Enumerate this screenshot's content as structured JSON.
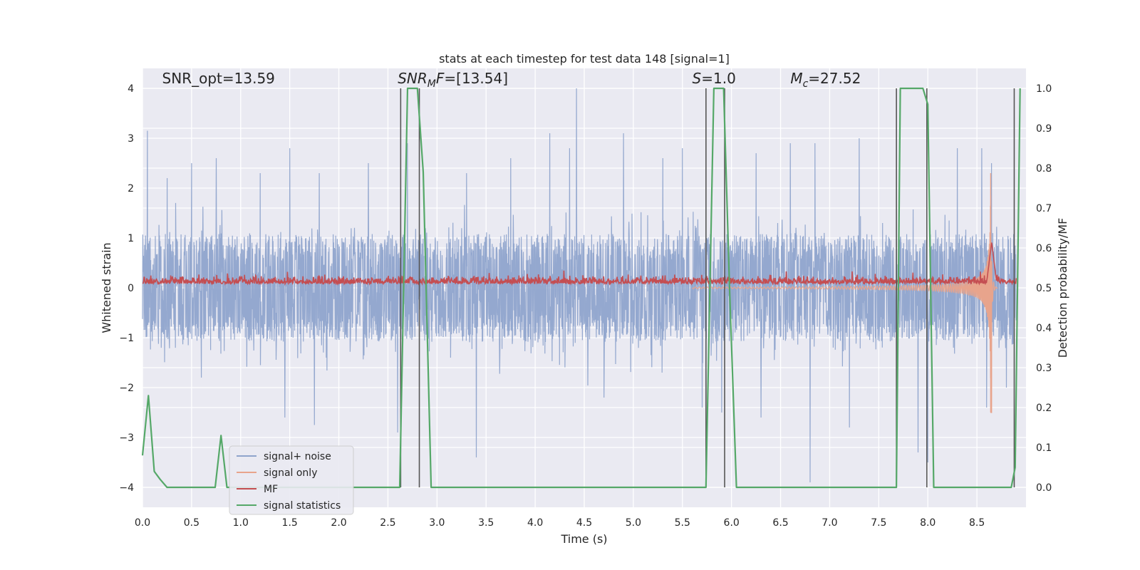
{
  "chart_data": {
    "type": "line",
    "title": "stats at each timestep for test data 148 [signal=1]",
    "xlabel": "Time (s)",
    "ylabel": "Whitened strain",
    "ylabel_right": "Detection probability/MF",
    "xlim": [
      0,
      9
    ],
    "ylim": [
      -4.4,
      4.4
    ],
    "ylim_right": [
      -0.05,
      1.05
    ],
    "x_ticks": [
      0.0,
      0.5,
      1.0,
      1.5,
      2.0,
      2.5,
      3.0,
      3.5,
      4.0,
      4.5,
      5.0,
      5.5,
      6.0,
      6.5,
      7.0,
      7.5,
      8.0,
      8.5
    ],
    "x_tick_labels": [
      "0.0",
      "0.5",
      "1.0",
      "1.5",
      "2.0",
      "2.5",
      "3.0",
      "3.5",
      "4.0",
      "4.5",
      "5.0",
      "5.5",
      "6.0",
      "6.5",
      "7.0",
      "7.5",
      "8.0",
      "8.5"
    ],
    "y_ticks": [
      -4,
      -3,
      -2,
      -1,
      0,
      1,
      2,
      3,
      4
    ],
    "y_tick_labels": [
      "−4",
      "−3",
      "−2",
      "−1",
      "0",
      "1",
      "2",
      "3",
      "4"
    ],
    "y_right_ticks": [
      0.0,
      0.1,
      0.2,
      0.3,
      0.4,
      0.5,
      0.6,
      0.7,
      0.8,
      0.9,
      1.0
    ],
    "y_right_tick_labels": [
      "0.0",
      "0.1",
      "0.2",
      "0.3",
      "0.4",
      "0.5",
      "0.6",
      "0.7",
      "0.8",
      "0.9",
      "1.0"
    ],
    "grid": true,
    "annotations": [
      {
        "parts": [
          {
            "t": "SNR_opt=13.59",
            "i": false
          }
        ],
        "x": 0.2,
        "y": 4.1
      },
      {
        "parts": [
          {
            "t": "SNR",
            "i": true
          },
          {
            "t": "M",
            "i": true,
            "sub": true
          },
          {
            "t": "F",
            "i": true
          },
          {
            "t": "=[13.54]",
            "i": false
          }
        ],
        "x": 2.6,
        "y": 4.1
      },
      {
        "parts": [
          {
            "t": "S",
            "i": true
          },
          {
            "t": "=1.0",
            "i": false
          }
        ],
        "x": 5.6,
        "y": 4.1
      },
      {
        "parts": [
          {
            "t": "M",
            "i": true
          },
          {
            "t": "c",
            "i": true,
            "sub": true
          },
          {
            "t": "=27.52",
            "i": false
          }
        ],
        "x": 6.6,
        "y": 4.1
      }
    ],
    "legend": {
      "placement": "lower-left",
      "entries": [
        {
          "label": "signal+ noise",
          "color": "#8fa4cc"
        },
        {
          "label": "signal only",
          "color": "#e8a48c"
        },
        {
          "label": "MF",
          "color": "#c44e52"
        },
        {
          "label": "signal statistics",
          "color": "#55a868"
        }
      ]
    },
    "series": [
      {
        "name": "signal+ noise",
        "color": "#8fa4cc",
        "kind": "noise",
        "duration": 8.9,
        "band": 0.9,
        "peaks_high": [
          [
            0.05,
            3.15
          ],
          [
            0.25,
            2.2
          ],
          [
            0.5,
            2.5
          ],
          [
            0.75,
            2.6
          ],
          [
            1.2,
            2.3
          ],
          [
            1.5,
            2.8
          ],
          [
            1.8,
            2.3
          ],
          [
            2.3,
            2.5
          ],
          [
            2.7,
            2.9
          ],
          [
            3.3,
            2.3
          ],
          [
            3.75,
            2.6
          ],
          [
            4.15,
            3.1
          ],
          [
            4.35,
            2.8
          ],
          [
            4.42,
            4.0
          ],
          [
            4.9,
            3.1
          ],
          [
            5.3,
            2.6
          ],
          [
            5.5,
            2.8
          ],
          [
            5.7,
            3.0
          ],
          [
            6.25,
            2.7
          ],
          [
            6.6,
            2.9
          ],
          [
            6.85,
            2.9
          ],
          [
            7.3,
            3.0
          ],
          [
            8.0,
            3.0
          ],
          [
            8.3,
            2.8
          ],
          [
            8.55,
            2.8
          ],
          [
            8.65,
            2.5
          ],
          [
            8.95,
            2.1
          ]
        ],
        "peaks_low": [
          [
            0.6,
            -1.8
          ],
          [
            1.45,
            -2.6
          ],
          [
            1.75,
            -2.75
          ],
          [
            2.6,
            -2.9
          ],
          [
            3.4,
            -3.4
          ],
          [
            4.7,
            -2.2
          ],
          [
            5.7,
            -2.4
          ],
          [
            5.9,
            -2.5
          ],
          [
            6.3,
            -2.6
          ],
          [
            6.8,
            -3.9
          ],
          [
            7.2,
            -2.8
          ],
          [
            7.9,
            -3.3
          ],
          [
            8.0,
            -3.5
          ],
          [
            8.6,
            -2.4
          ],
          [
            8.8,
            -2.0
          ]
        ]
      },
      {
        "name": "signal only",
        "color": "#e8a48c",
        "kind": "chirp",
        "start": 5.6,
        "merger": 8.65,
        "peak": 2.3,
        "trough": -2.5
      },
      {
        "name": "MF",
        "color": "#c44e52",
        "kind": "mf",
        "duration": 8.9,
        "peak_x": 8.65,
        "peak_y": 0.615
      },
      {
        "name": "signal statistics",
        "color": "#55a868",
        "kind": "line",
        "x": [
          0.0,
          0.06,
          0.12,
          0.18,
          0.25,
          0.4,
          0.74,
          0.8,
          0.86,
          1.0,
          2.0,
          2.62,
          2.7,
          2.8,
          2.86,
          2.94,
          3.0,
          4.0,
          5.0,
          5.74,
          5.82,
          5.92,
          5.98,
          6.05,
          6.5,
          7.0,
          7.5,
          7.68,
          7.72,
          7.8,
          7.95,
          8.0,
          8.06,
          8.3,
          8.6,
          8.85,
          8.89,
          8.94
        ],
        "y": [
          0.08,
          0.23,
          0.04,
          0.02,
          0.0,
          0.0,
          0.0,
          0.13,
          0.0,
          0.0,
          0.0,
          0.0,
          1.0,
          1.0,
          0.79,
          0.0,
          0.0,
          0.0,
          0.0,
          0.0,
          1.0,
          1.0,
          0.5,
          0.0,
          0.0,
          0.0,
          0.0,
          0.0,
          1.0,
          1.0,
          1.0,
          0.96,
          0.0,
          0.0,
          0.0,
          0.0,
          0.05,
          1.0
        ],
        "axis": "right"
      }
    ],
    "vlines": {
      "color": "#555555",
      "x": [
        2.63,
        2.82,
        5.74,
        5.93,
        7.68,
        7.99,
        8.88
      ],
      "y_range": [
        0.0,
        1.0
      ],
      "axis": "right"
    }
  }
}
